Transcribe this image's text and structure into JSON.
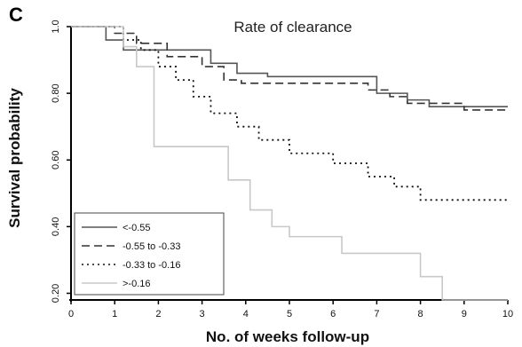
{
  "panel_letter": "C",
  "chart_data": {
    "type": "line",
    "title": "Rate of clearance",
    "xlabel": "No. of weeks follow-up",
    "ylabel": "Survival probability",
    "xlim": [
      0,
      10
    ],
    "ylim": [
      0.18,
      1.0
    ],
    "x_ticks": [
      "0",
      "1",
      "2",
      "3",
      "4",
      "5",
      "6",
      "7",
      "8",
      "9",
      "10"
    ],
    "y_ticks": [
      {
        "value": 1.0,
        "label": "1.0"
      },
      {
        "value": 0.8,
        "label": "0.80"
      },
      {
        "value": 0.6,
        "label": "0.60"
      },
      {
        "value": 0.4,
        "label": "0.40"
      },
      {
        "value": 0.2,
        "label": "0.20"
      }
    ],
    "legend_position": "bottom-left",
    "grid": false,
    "series": [
      {
        "name": "<-0.55",
        "style": "solid",
        "color": "#555555",
        "x": [
          0,
          0.5,
          0.8,
          1.2,
          2.5,
          3.2,
          3.8,
          4.5,
          6.5,
          7.0,
          7.7,
          8.2,
          9.0,
          10
        ],
        "y": [
          1.0,
          1.0,
          0.96,
          0.93,
          0.93,
          0.89,
          0.86,
          0.85,
          0.85,
          0.8,
          0.78,
          0.76,
          0.76,
          0.76
        ]
      },
      {
        "name": "-0.55 to -0.33",
        "style": "dashed",
        "color": "#333333",
        "x": [
          0,
          0.7,
          1.0,
          1.5,
          2.2,
          3.0,
          3.5,
          3.9,
          6.0,
          6.8,
          7.3,
          7.7,
          9.0,
          10
        ],
        "y": [
          1.0,
          1.0,
          0.98,
          0.95,
          0.91,
          0.88,
          0.84,
          0.83,
          0.83,
          0.81,
          0.79,
          0.77,
          0.75,
          0.75
        ]
      },
      {
        "name": "-0.33 to -0.16",
        "style": "dotted",
        "color": "#111111",
        "x": [
          0,
          0.8,
          1.2,
          1.6,
          2.0,
          2.4,
          2.8,
          3.2,
          3.8,
          4.3,
          5.0,
          6.0,
          6.8,
          7.4,
          8.0,
          10
        ],
        "y": [
          1.0,
          1.0,
          0.96,
          0.93,
          0.88,
          0.84,
          0.79,
          0.74,
          0.7,
          0.66,
          0.62,
          0.59,
          0.55,
          0.52,
          0.48,
          0.48
        ]
      },
      {
        "name": ">-0.16",
        "style": "solid",
        "color": "#c8c8c8",
        "x": [
          0,
          0.8,
          1.2,
          1.5,
          1.9,
          2.8,
          3.6,
          4.1,
          4.6,
          5.0,
          6.2,
          8.0,
          8.5,
          10
        ],
        "y": [
          1.0,
          1.0,
          0.94,
          0.88,
          0.64,
          0.64,
          0.54,
          0.45,
          0.4,
          0.37,
          0.32,
          0.25,
          0.18,
          0.18
        ]
      }
    ]
  }
}
